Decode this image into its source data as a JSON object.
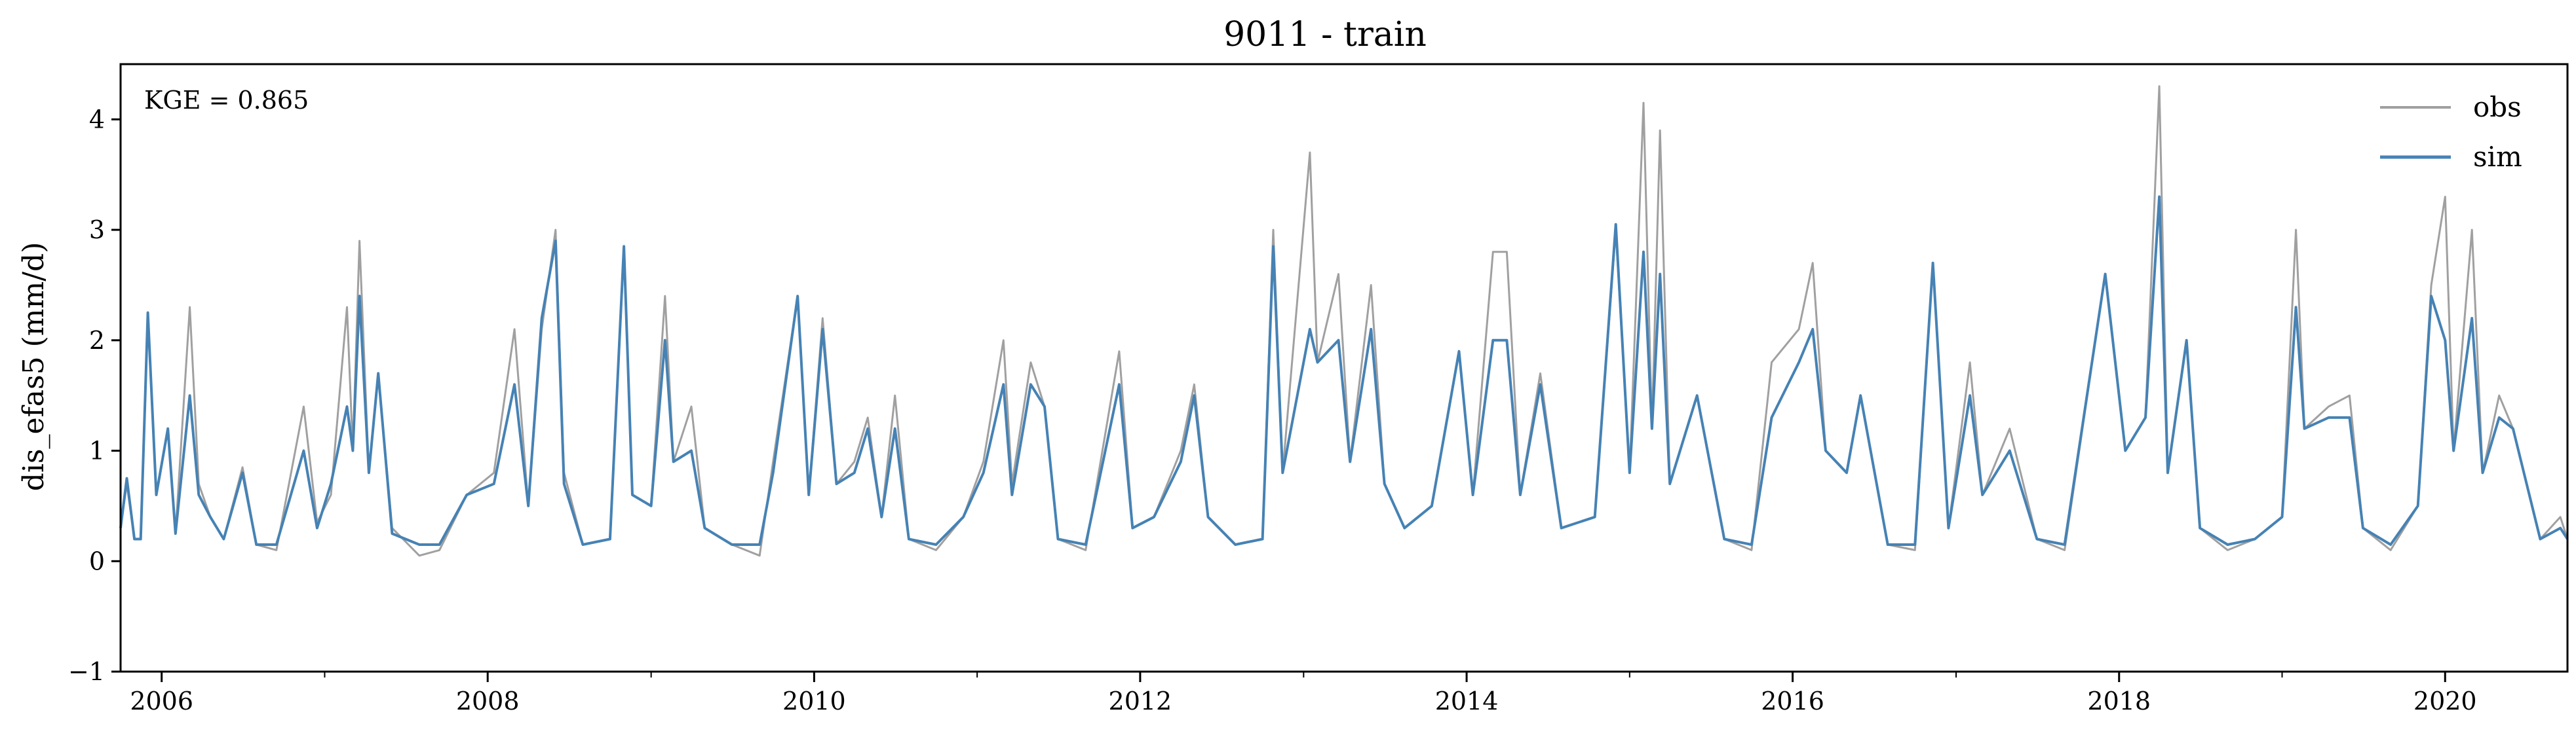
{
  "chart_data": {
    "type": "line",
    "title": "9011 - train",
    "ylabel": "dis_efas5 (mm/d)",
    "xlabel": "",
    "annotation": "KGE = 0.865",
    "xlim": [
      "2005-10-01",
      "2020-10-01"
    ],
    "ylim": [
      -1,
      4.5
    ],
    "x_ticks": [
      "2006",
      "2008",
      "2010",
      "2012",
      "2014",
      "2016",
      "2018",
      "2020"
    ],
    "y_ticks": [
      "−1",
      "0",
      "1",
      "2",
      "3",
      "4"
    ],
    "grid": false,
    "legend_position": "top-right",
    "series": [
      {
        "name": "obs",
        "color": "#a0a0a0",
        "points": [
          [
            "2005-10-01",
            0.3
          ],
          [
            "2005-10-15",
            0.7
          ],
          [
            "2005-11-01",
            0.2
          ],
          [
            "2005-11-15",
            0.2
          ],
          [
            "2005-12-01",
            2.2
          ],
          [
            "2005-12-20",
            0.6
          ],
          [
            "2006-01-15",
            1.2
          ],
          [
            "2006-02-01",
            0.25
          ],
          [
            "2006-03-05",
            2.3
          ],
          [
            "2006-03-25",
            0.7
          ],
          [
            "2006-04-20",
            0.4
          ],
          [
            "2006-05-20",
            0.2
          ],
          [
            "2006-07-01",
            0.85
          ],
          [
            "2006-08-01",
            0.15
          ],
          [
            "2006-09-15",
            0.1
          ],
          [
            "2006-11-15",
            1.4
          ],
          [
            "2006-12-15",
            0.35
          ],
          [
            "2007-01-15",
            0.6
          ],
          [
            "2007-02-20",
            2.3
          ],
          [
            "2007-03-05",
            1.0
          ],
          [
            "2007-03-20",
            2.9
          ],
          [
            "2007-04-10",
            0.8
          ],
          [
            "2007-05-01",
            1.7
          ],
          [
            "2007-06-01",
            0.3
          ],
          [
            "2007-08-01",
            0.05
          ],
          [
            "2007-09-15",
            0.1
          ],
          [
            "2007-11-15",
            0.6
          ],
          [
            "2008-01-15",
            0.8
          ],
          [
            "2008-03-01",
            2.1
          ],
          [
            "2008-04-01",
            0.5
          ],
          [
            "2008-05-01",
            2.1
          ],
          [
            "2008-06-01",
            3.0
          ],
          [
            "2008-06-20",
            0.8
          ],
          [
            "2008-08-01",
            0.15
          ],
          [
            "2008-10-01",
            0.2
          ],
          [
            "2008-11-01",
            2.8
          ],
          [
            "2008-11-20",
            0.6
          ],
          [
            "2009-01-01",
            0.5
          ],
          [
            "2009-02-01",
            2.4
          ],
          [
            "2009-02-20",
            0.9
          ],
          [
            "2009-04-01",
            1.4
          ],
          [
            "2009-05-01",
            0.3
          ],
          [
            "2009-07-01",
            0.15
          ],
          [
            "2009-09-01",
            0.05
          ],
          [
            "2009-10-01",
            0.9
          ],
          [
            "2009-11-25",
            2.4
          ],
          [
            "2009-12-20",
            0.6
          ],
          [
            "2010-01-20",
            2.2
          ],
          [
            "2010-02-20",
            0.7
          ],
          [
            "2010-04-01",
            0.9
          ],
          [
            "2010-05-01",
            1.3
          ],
          [
            "2010-06-01",
            0.4
          ],
          [
            "2010-07-01",
            1.5
          ],
          [
            "2010-08-01",
            0.2
          ],
          [
            "2010-10-01",
            0.1
          ],
          [
            "2010-12-01",
            0.4
          ],
          [
            "2011-01-15",
            0.9
          ],
          [
            "2011-03-01",
            2.0
          ],
          [
            "2011-03-20",
            0.7
          ],
          [
            "2011-05-01",
            1.8
          ],
          [
            "2011-06-01",
            1.4
          ],
          [
            "2011-07-01",
            0.2
          ],
          [
            "2011-09-01",
            0.1
          ],
          [
            "2011-11-15",
            1.9
          ],
          [
            "2011-12-15",
            0.3
          ],
          [
            "2012-02-01",
            0.4
          ],
          [
            "2012-04-01",
            1.0
          ],
          [
            "2012-05-01",
            1.6
          ],
          [
            "2012-06-01",
            0.4
          ],
          [
            "2012-08-01",
            0.15
          ],
          [
            "2012-10-01",
            0.2
          ],
          [
            "2012-10-25",
            3.0
          ],
          [
            "2012-11-15",
            0.8
          ],
          [
            "2013-01-15",
            3.7
          ],
          [
            "2013-02-01",
            1.8
          ],
          [
            "2013-03-20",
            2.6
          ],
          [
            "2013-04-15",
            0.9
          ],
          [
            "2013-06-01",
            2.5
          ],
          [
            "2013-07-01",
            0.7
          ],
          [
            "2013-08-15",
            0.3
          ],
          [
            "2013-10-15",
            0.5
          ],
          [
            "2013-12-15",
            1.9
          ],
          [
            "2014-01-15",
            0.6
          ],
          [
            "2014-03-01",
            2.8
          ],
          [
            "2014-04-01",
            2.8
          ],
          [
            "2014-05-01",
            0.6
          ],
          [
            "2014-06-15",
            1.7
          ],
          [
            "2014-08-01",
            0.3
          ],
          [
            "2014-10-15",
            0.4
          ],
          [
            "2014-12-01",
            3.0
          ],
          [
            "2015-01-01",
            0.8
          ],
          [
            "2015-02-01",
            4.15
          ],
          [
            "2015-02-20",
            1.2
          ],
          [
            "2015-03-10",
            3.9
          ],
          [
            "2015-04-01",
            0.7
          ],
          [
            "2015-06-01",
            1.5
          ],
          [
            "2015-08-01",
            0.2
          ],
          [
            "2015-10-01",
            0.1
          ],
          [
            "2015-11-15",
            1.8
          ],
          [
            "2016-01-15",
            2.1
          ],
          [
            "2016-02-15",
            2.7
          ],
          [
            "2016-03-15",
            1.0
          ],
          [
            "2016-05-01",
            0.8
          ],
          [
            "2016-06-01",
            1.5
          ],
          [
            "2016-08-01",
            0.15
          ],
          [
            "2016-10-01",
            0.1
          ],
          [
            "2016-11-10",
            2.7
          ],
          [
            "2016-12-15",
            0.3
          ],
          [
            "2017-02-01",
            1.8
          ],
          [
            "2017-03-01",
            0.6
          ],
          [
            "2017-05-01",
            1.2
          ],
          [
            "2017-07-01",
            0.2
          ],
          [
            "2017-09-01",
            0.1
          ],
          [
            "2017-12-01",
            2.6
          ],
          [
            "2018-01-15",
            1.0
          ],
          [
            "2018-03-01",
            1.3
          ],
          [
            "2018-04-01",
            4.3
          ],
          [
            "2018-04-20",
            0.8
          ],
          [
            "2018-06-01",
            2.0
          ],
          [
            "2018-07-01",
            0.3
          ],
          [
            "2018-09-01",
            0.1
          ],
          [
            "2018-11-01",
            0.2
          ],
          [
            "2019-01-01",
            0.4
          ],
          [
            "2019-02-01",
            3.0
          ],
          [
            "2019-02-20",
            1.2
          ],
          [
            "2019-04-15",
            1.4
          ],
          [
            "2019-06-01",
            1.5
          ],
          [
            "2019-07-01",
            0.3
          ],
          [
            "2019-09-01",
            0.1
          ],
          [
            "2019-11-01",
            0.5
          ],
          [
            "2019-12-01",
            2.5
          ],
          [
            "2020-01-01",
            3.3
          ],
          [
            "2020-01-20",
            1.0
          ],
          [
            "2020-03-01",
            3.0
          ],
          [
            "2020-03-25",
            0.8
          ],
          [
            "2020-05-01",
            1.5
          ],
          [
            "2020-06-01",
            1.2
          ],
          [
            "2020-08-01",
            0.2
          ],
          [
            "2020-09-15",
            0.4
          ],
          [
            "2020-10-01",
            0.2
          ]
        ]
      },
      {
        "name": "sim",
        "color": "#4682b4",
        "points": [
          [
            "2005-10-01",
            0.3
          ],
          [
            "2005-10-15",
            0.75
          ],
          [
            "2005-11-01",
            0.2
          ],
          [
            "2005-11-15",
            0.2
          ],
          [
            "2005-12-01",
            2.25
          ],
          [
            "2005-12-20",
            0.6
          ],
          [
            "2006-01-15",
            1.2
          ],
          [
            "2006-02-01",
            0.25
          ],
          [
            "2006-03-05",
            1.5
          ],
          [
            "2006-03-25",
            0.6
          ],
          [
            "2006-04-20",
            0.4
          ],
          [
            "2006-05-20",
            0.2
          ],
          [
            "2006-07-01",
            0.8
          ],
          [
            "2006-08-01",
            0.15
          ],
          [
            "2006-09-15",
            0.15
          ],
          [
            "2006-11-15",
            1.0
          ],
          [
            "2006-12-15",
            0.3
          ],
          [
            "2007-01-15",
            0.7
          ],
          [
            "2007-02-20",
            1.4
          ],
          [
            "2007-03-05",
            1.0
          ],
          [
            "2007-03-20",
            2.4
          ],
          [
            "2007-04-10",
            0.8
          ],
          [
            "2007-05-01",
            1.7
          ],
          [
            "2007-06-01",
            0.25
          ],
          [
            "2007-08-01",
            0.15
          ],
          [
            "2007-09-15",
            0.15
          ],
          [
            "2007-11-15",
            0.6
          ],
          [
            "2008-01-15",
            0.7
          ],
          [
            "2008-03-01",
            1.6
          ],
          [
            "2008-04-01",
            0.5
          ],
          [
            "2008-05-01",
            2.2
          ],
          [
            "2008-06-01",
            2.9
          ],
          [
            "2008-06-20",
            0.7
          ],
          [
            "2008-08-01",
            0.15
          ],
          [
            "2008-10-01",
            0.2
          ],
          [
            "2008-11-01",
            2.85
          ],
          [
            "2008-11-20",
            0.6
          ],
          [
            "2009-01-01",
            0.5
          ],
          [
            "2009-02-01",
            2.0
          ],
          [
            "2009-02-20",
            0.9
          ],
          [
            "2009-04-01",
            1.0
          ],
          [
            "2009-05-01",
            0.3
          ],
          [
            "2009-07-01",
            0.15
          ],
          [
            "2009-09-01",
            0.15
          ],
          [
            "2009-10-01",
            0.8
          ],
          [
            "2009-11-25",
            2.4
          ],
          [
            "2009-12-20",
            0.6
          ],
          [
            "2010-01-20",
            2.1
          ],
          [
            "2010-02-20",
            0.7
          ],
          [
            "2010-04-01",
            0.8
          ],
          [
            "2010-05-01",
            1.2
          ],
          [
            "2010-06-01",
            0.4
          ],
          [
            "2010-07-01",
            1.2
          ],
          [
            "2010-08-01",
            0.2
          ],
          [
            "2010-10-01",
            0.15
          ],
          [
            "2010-12-01",
            0.4
          ],
          [
            "2011-01-15",
            0.8
          ],
          [
            "2011-03-01",
            1.6
          ],
          [
            "2011-03-20",
            0.6
          ],
          [
            "2011-05-01",
            1.6
          ],
          [
            "2011-06-01",
            1.4
          ],
          [
            "2011-07-01",
            0.2
          ],
          [
            "2011-09-01",
            0.15
          ],
          [
            "2011-11-15",
            1.6
          ],
          [
            "2011-12-15",
            0.3
          ],
          [
            "2012-02-01",
            0.4
          ],
          [
            "2012-04-01",
            0.9
          ],
          [
            "2012-05-01",
            1.5
          ],
          [
            "2012-06-01",
            0.4
          ],
          [
            "2012-08-01",
            0.15
          ],
          [
            "2012-10-01",
            0.2
          ],
          [
            "2012-10-25",
            2.85
          ],
          [
            "2012-11-15",
            0.8
          ],
          [
            "2013-01-15",
            2.1
          ],
          [
            "2013-02-01",
            1.8
          ],
          [
            "2013-03-20",
            2.0
          ],
          [
            "2013-04-15",
            0.9
          ],
          [
            "2013-06-01",
            2.1
          ],
          [
            "2013-07-01",
            0.7
          ],
          [
            "2013-08-15",
            0.3
          ],
          [
            "2013-10-15",
            0.5
          ],
          [
            "2013-12-15",
            1.9
          ],
          [
            "2014-01-15",
            0.6
          ],
          [
            "2014-03-01",
            2.0
          ],
          [
            "2014-04-01",
            2.0
          ],
          [
            "2014-05-01",
            0.6
          ],
          [
            "2014-06-15",
            1.6
          ],
          [
            "2014-08-01",
            0.3
          ],
          [
            "2014-10-15",
            0.4
          ],
          [
            "2014-12-01",
            3.05
          ],
          [
            "2015-01-01",
            0.8
          ],
          [
            "2015-02-01",
            2.8
          ],
          [
            "2015-02-20",
            1.2
          ],
          [
            "2015-03-10",
            2.6
          ],
          [
            "2015-04-01",
            0.7
          ],
          [
            "2015-06-01",
            1.5
          ],
          [
            "2015-08-01",
            0.2
          ],
          [
            "2015-10-01",
            0.15
          ],
          [
            "2015-11-15",
            1.3
          ],
          [
            "2016-01-15",
            1.8
          ],
          [
            "2016-02-15",
            2.1
          ],
          [
            "2016-03-15",
            1.0
          ],
          [
            "2016-05-01",
            0.8
          ],
          [
            "2016-06-01",
            1.5
          ],
          [
            "2016-08-01",
            0.15
          ],
          [
            "2016-10-01",
            0.15
          ],
          [
            "2016-11-10",
            2.7
          ],
          [
            "2016-12-15",
            0.3
          ],
          [
            "2017-02-01",
            1.5
          ],
          [
            "2017-03-01",
            0.6
          ],
          [
            "2017-05-01",
            1.0
          ],
          [
            "2017-07-01",
            0.2
          ],
          [
            "2017-09-01",
            0.15
          ],
          [
            "2017-12-01",
            2.6
          ],
          [
            "2018-01-15",
            1.0
          ],
          [
            "2018-03-01",
            1.3
          ],
          [
            "2018-04-01",
            3.3
          ],
          [
            "2018-04-20",
            0.8
          ],
          [
            "2018-06-01",
            2.0
          ],
          [
            "2018-07-01",
            0.3
          ],
          [
            "2018-09-01",
            0.15
          ],
          [
            "2018-11-01",
            0.2
          ],
          [
            "2019-01-01",
            0.4
          ],
          [
            "2019-02-01",
            2.3
          ],
          [
            "2019-02-20",
            1.2
          ],
          [
            "2019-04-15",
            1.3
          ],
          [
            "2019-06-01",
            1.3
          ],
          [
            "2019-07-01",
            0.3
          ],
          [
            "2019-09-01",
            0.15
          ],
          [
            "2019-11-01",
            0.5
          ],
          [
            "2019-12-01",
            2.4
          ],
          [
            "2020-01-01",
            2.0
          ],
          [
            "2020-01-20",
            1.0
          ],
          [
            "2020-03-01",
            2.2
          ],
          [
            "2020-03-25",
            0.8
          ],
          [
            "2020-05-01",
            1.3
          ],
          [
            "2020-06-01",
            1.2
          ],
          [
            "2020-08-01",
            0.2
          ],
          [
            "2020-09-15",
            0.3
          ],
          [
            "2020-10-01",
            0.2
          ]
        ]
      }
    ]
  }
}
